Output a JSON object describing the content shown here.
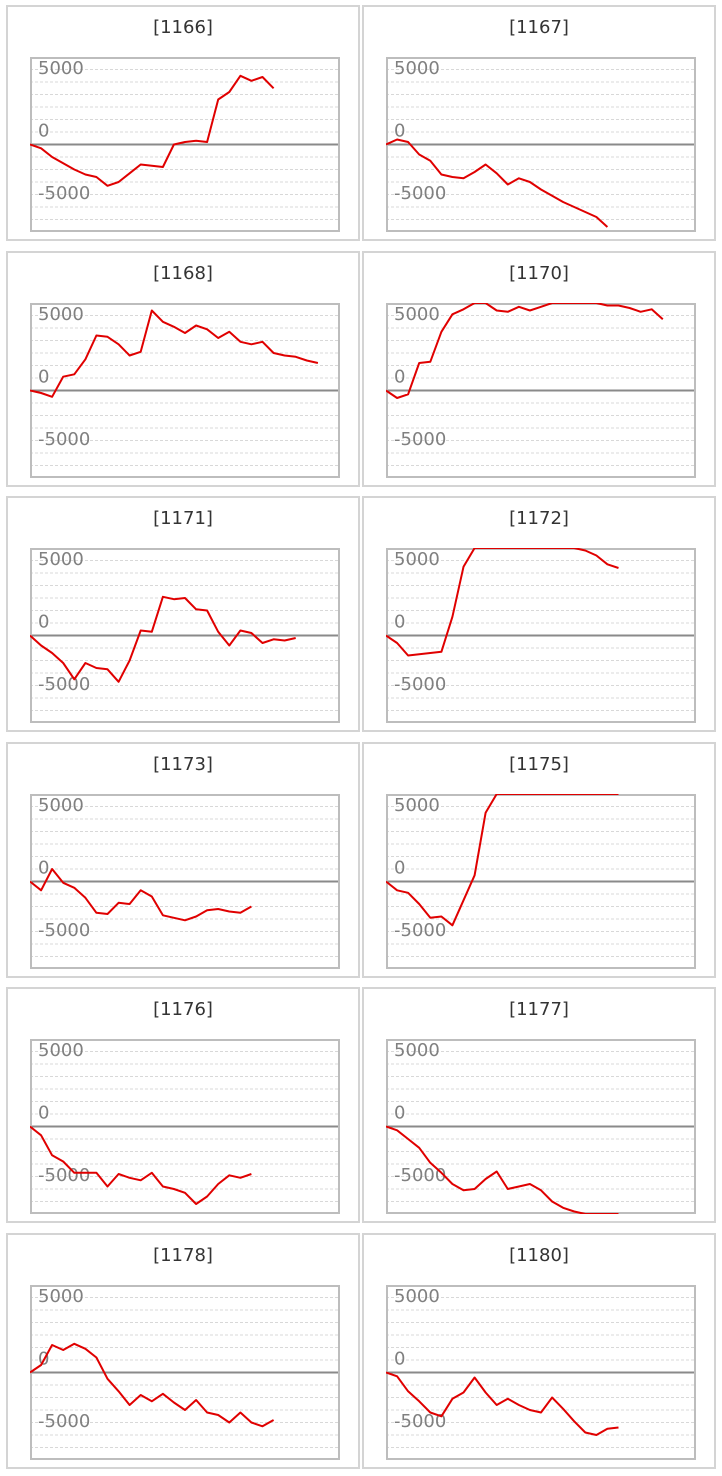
{
  "style": {
    "line_color": "#e00000",
    "zero_line_color": "#8a8a8a",
    "grid_color": "#d8d8d8",
    "frame_color": "#bdbdbd",
    "panel_border_color": "#d4d4d4",
    "label_color": "#808080",
    "title_color": "#333333"
  },
  "chart_data": [
    {
      "type": "line",
      "title": "[1166]",
      "ylim": [
        -7000,
        7000
      ],
      "yticks": [
        5000,
        0,
        -5000
      ],
      "grid": true,
      "x": [
        0,
        1,
        2,
        3,
        4,
        5,
        6,
        7,
        8,
        9,
        10,
        11,
        12,
        13,
        14,
        15,
        16,
        17,
        18,
        19,
        20,
        21,
        22
      ],
      "values": [
        0,
        -300,
        -1000,
        -1500,
        -2000,
        -2400,
        -2600,
        -3300,
        -3000,
        -2300,
        -1600,
        -1700,
        -1800,
        0,
        200,
        300,
        200,
        3600,
        4200,
        5500,
        5100,
        5400,
        4500
      ]
    },
    {
      "type": "line",
      "title": "[1167]",
      "ylim": [
        -7000,
        7000
      ],
      "yticks": [
        5000,
        0,
        -5000
      ],
      "grid": true,
      "x": [
        0,
        1,
        2,
        3,
        4,
        5,
        6,
        7,
        8,
        9,
        10,
        11,
        12,
        13,
        14,
        15,
        16,
        17,
        18,
        19,
        20
      ],
      "values": [
        0,
        400,
        200,
        -800,
        -1300,
        -2400,
        -2600,
        -2700,
        -2200,
        -1600,
        -2300,
        -3200,
        -2700,
        -3000,
        -3600,
        -4100,
        -4600,
        -5000,
        -5400,
        -5800,
        -6600
      ]
    },
    {
      "type": "line",
      "title": "[1168]",
      "ylim": [
        -7000,
        7000
      ],
      "yticks": [
        5000,
        0,
        -5000
      ],
      "grid": true,
      "x": [
        0,
        1,
        2,
        3,
        4,
        5,
        6,
        7,
        8,
        9,
        10,
        11,
        12,
        13,
        14,
        15,
        16,
        17,
        18,
        19,
        20,
        21,
        22,
        23,
        24,
        25,
        26
      ],
      "values": [
        0,
        -200,
        -500,
        1100,
        1300,
        2500,
        4400,
        4300,
        3700,
        2800,
        3100,
        6400,
        5500,
        5100,
        4600,
        5200,
        4900,
        4200,
        4700,
        3900,
        3700,
        3900,
        3000,
        2800,
        2700,
        2400,
        2200
      ]
    },
    {
      "type": "line",
      "title": "[1170]",
      "ylim": [
        -7000,
        7000
      ],
      "yticks": [
        5000,
        0,
        -5000
      ],
      "grid": true,
      "x": [
        0,
        1,
        2,
        3,
        4,
        5,
        6,
        7,
        8,
        9,
        10,
        11,
        12,
        13,
        14,
        15,
        16,
        17,
        18,
        19,
        20,
        21,
        22,
        23,
        24,
        25
      ],
      "values": [
        0,
        -600,
        -300,
        2200,
        2300,
        4700,
        6100,
        6500,
        7000,
        7000,
        6400,
        6300,
        6700,
        6400,
        6700,
        7000,
        7000,
        7000,
        7000,
        7000,
        6800,
        6800,
        6600,
        6300,
        6500,
        5700
      ]
    },
    {
      "type": "line",
      "title": "[1171]",
      "ylim": [
        -7000,
        7000
      ],
      "yticks": [
        5000,
        0,
        -5000
      ],
      "grid": true,
      "x": [
        0,
        1,
        2,
        3,
        4,
        5,
        6,
        7,
        8,
        9,
        10,
        11,
        12,
        13,
        14,
        15,
        16,
        17,
        18,
        19,
        20,
        21,
        22,
        23,
        24
      ],
      "values": [
        0,
        -800,
        -1400,
        -2200,
        -3500,
        -2200,
        -2600,
        -2700,
        -3700,
        -2000,
        400,
        300,
        3100,
        2900,
        3000,
        2100,
        2000,
        300,
        -800,
        400,
        200,
        -600,
        -300,
        -400,
        -200
      ]
    },
    {
      "type": "line",
      "title": "[1172]",
      "ylim": [
        -7000,
        7000
      ],
      "yticks": [
        5000,
        0,
        -5000
      ],
      "grid": true,
      "x": [
        0,
        1,
        2,
        3,
        4,
        5,
        6,
        7,
        8,
        9,
        10,
        11,
        12,
        13,
        14,
        15,
        16,
        17,
        18,
        19,
        20,
        21
      ],
      "values": [
        0,
        -600,
        -1600,
        -1500,
        -1400,
        -1300,
        1500,
        5500,
        7000,
        7000,
        7000,
        7000,
        7000,
        7000,
        7000,
        7000,
        7000,
        7000,
        6800,
        6400,
        5700,
        5400
      ]
    },
    {
      "type": "line",
      "title": "[1173]",
      "ylim": [
        -7000,
        7000
      ],
      "yticks": [
        5000,
        0,
        -5000
      ],
      "grid": true,
      "x": [
        0,
        1,
        2,
        3,
        4,
        5,
        6,
        7,
        8,
        9,
        10,
        11,
        12,
        13,
        14,
        15,
        16,
        17,
        18,
        19,
        20
      ],
      "values": [
        0,
        -700,
        1000,
        -100,
        -500,
        -1300,
        -2500,
        -2600,
        -1700,
        -1800,
        -700,
        -1200,
        -2700,
        -2900,
        -3100,
        -2800,
        -2300,
        -2200,
        -2400,
        -2500,
        -2000
      ]
    },
    {
      "type": "line",
      "title": "[1175]",
      "ylim": [
        -7000,
        7000
      ],
      "yticks": [
        5000,
        0,
        -5000
      ],
      "grid": true,
      "x": [
        0,
        1,
        2,
        3,
        4,
        5,
        6,
        7,
        8,
        9,
        10,
        11,
        12,
        13,
        14,
        15,
        16,
        17,
        18,
        19,
        20,
        21
      ],
      "values": [
        0,
        -700,
        -900,
        -1800,
        -2900,
        -2800,
        -3500,
        -1500,
        500,
        5500,
        7000,
        7000,
        7000,
        7000,
        7000,
        7000,
        7000,
        7000,
        7000,
        7000,
        7000,
        7000
      ]
    },
    {
      "type": "line",
      "title": "[1176]",
      "ylim": [
        -7000,
        7000
      ],
      "yticks": [
        5000,
        0,
        -5000
      ],
      "grid": true,
      "x": [
        0,
        1,
        2,
        3,
        4,
        5,
        6,
        7,
        8,
        9,
        10,
        11,
        12,
        13,
        14,
        15,
        16,
        17,
        18,
        19,
        20
      ],
      "values": [
        0,
        -700,
        -2300,
        -2800,
        -3700,
        -3700,
        -3700,
        -4800,
        -3800,
        -4100,
        -4300,
        -3700,
        -4800,
        -5000,
        -5300,
        -6200,
        -5600,
        -4600,
        -3900,
        -4100,
        -3800
      ]
    },
    {
      "type": "line",
      "title": "[1177]",
      "ylim": [
        -7000,
        7000
      ],
      "yticks": [
        5000,
        0,
        -5000
      ],
      "grid": true,
      "x": [
        0,
        1,
        2,
        3,
        4,
        5,
        6,
        7,
        8,
        9,
        10,
        11,
        12,
        13,
        14,
        15,
        16,
        17,
        18,
        19,
        20,
        21
      ],
      "values": [
        0,
        -300,
        -1000,
        -1700,
        -2900,
        -3700,
        -4600,
        -5100,
        -5000,
        -4200,
        -3600,
        -5000,
        -4800,
        -4600,
        -5100,
        -6000,
        -6500,
        -6800,
        -7000,
        -7000,
        -7000,
        -7000
      ]
    },
    {
      "type": "line",
      "title": "[1178]",
      "ylim": [
        -7000,
        7000
      ],
      "yticks": [
        5000,
        0,
        -5000
      ],
      "grid": true,
      "x": [
        0,
        1,
        2,
        3,
        4,
        5,
        6,
        7,
        8,
        9,
        10,
        11,
        12,
        13,
        14,
        15,
        16,
        17,
        18,
        19,
        20,
        21,
        22
      ],
      "values": [
        0,
        600,
        2200,
        1800,
        2300,
        1900,
        1200,
        -500,
        -1500,
        -2600,
        -1800,
        -2300,
        -1700,
        -2400,
        -3000,
        -2200,
        -3200,
        -3400,
        -4000,
        -3200,
        -4000,
        -4300,
        -3800
      ]
    },
    {
      "type": "line",
      "title": "[1180]",
      "ylim": [
        -7000,
        7000
      ],
      "yticks": [
        5000,
        0,
        -5000
      ],
      "grid": true,
      "x": [
        0,
        1,
        2,
        3,
        4,
        5,
        6,
        7,
        8,
        9,
        10,
        11,
        12,
        13,
        14,
        15,
        16,
        17,
        18,
        19,
        20,
        21
      ],
      "values": [
        0,
        -300,
        -1500,
        -2300,
        -3200,
        -3500,
        -2100,
        -1600,
        -400,
        -1600,
        -2600,
        -2100,
        -2600,
        -3000,
        -3200,
        -2000,
        -2900,
        -3900,
        -4800,
        -5000,
        -4500,
        -4400
      ]
    }
  ]
}
